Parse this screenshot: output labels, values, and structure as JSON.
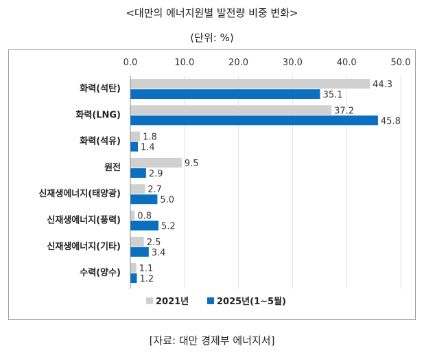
{
  "title": "<대만의 에너지원별 발전량 비중 변화>",
  "unit": "(단위: %)",
  "source": "[자료: 대만 경제부 에너지서]",
  "colors": {
    "s2021": "#d0d0d0",
    "s2025": "#0b6fc0"
  },
  "chart_data": {
    "type": "bar",
    "orientation": "horizontal",
    "categories": [
      "화력(석탄)",
      "화력(LNG)",
      "화력(석유)",
      "원전",
      "신재생에너지(태양광)",
      "신재생에너지(풍력)",
      "신재생에너지(기타)",
      "수력(양수)"
    ],
    "series": [
      {
        "name": "2021년",
        "values": [
          44.3,
          37.2,
          1.8,
          9.5,
          2.7,
          0.8,
          2.5,
          1.1
        ]
      },
      {
        "name": "2025년(1~5월)",
        "values": [
          35.1,
          45.8,
          1.4,
          2.9,
          5.0,
          5.2,
          3.4,
          1.2
        ]
      }
    ],
    "xlim": [
      0,
      50
    ],
    "xticks": [
      "0.0",
      "10.0",
      "20.0",
      "30.0",
      "40.0",
      "50.0"
    ],
    "title": "<대만의 에너지원별 발전량 비중 변화>",
    "xlabel": "",
    "ylabel": "",
    "legend": "bottom"
  }
}
